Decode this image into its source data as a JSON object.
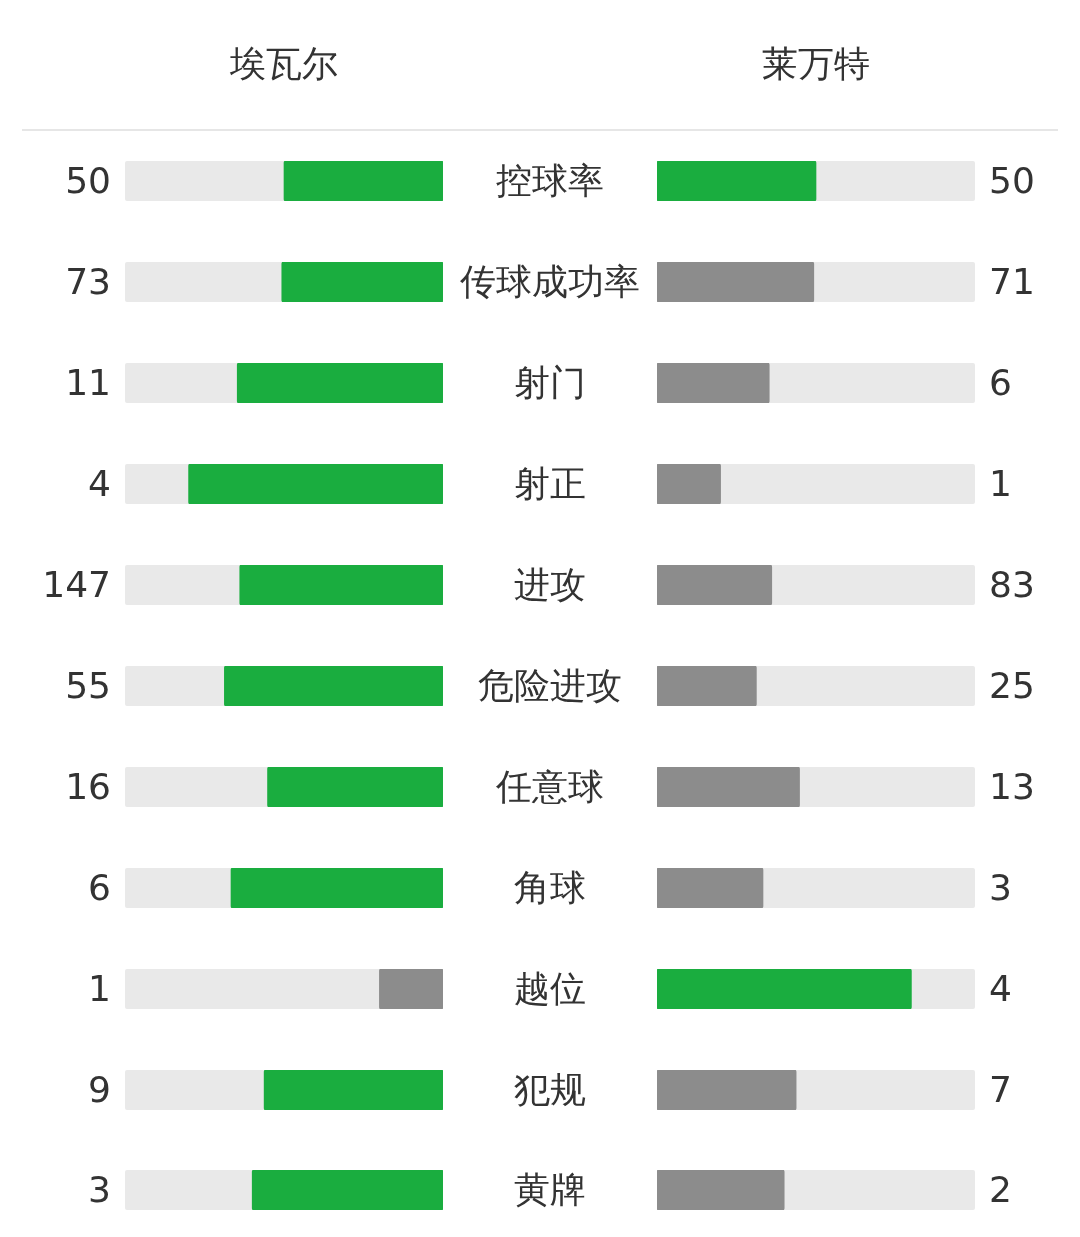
{
  "chart_data": {
    "type": "other",
    "data_labels": true,
    "categories": [
      "控球率",
      "传球成功率",
      "射门",
      "射正",
      "进攻",
      "危险进攻",
      "任意球",
      "角球",
      "越位",
      "犯规",
      "黄牌"
    ],
    "series": [
      {
        "name": "埃瓦尔",
        "values": [
          50,
          73,
          11,
          4,
          147,
          55,
          16,
          6,
          1,
          9,
          3
        ],
        "colors": [
          "#1aad3f",
          "#1aad3f",
          "#1aad3f",
          "#1aad3f",
          "#1aad3f",
          "#1aad3f",
          "#1aad3f",
          "#1aad3f",
          "#8c8c8c",
          "#1aad3f",
          "#1aad3f"
        ]
      },
      {
        "name": "莱万特",
        "values": [
          50,
          71,
          6,
          1,
          83,
          25,
          13,
          3,
          4,
          7,
          2
        ],
        "colors": [
          "#1aad3f",
          "#8c8c8c",
          "#8c8c8c",
          "#8c8c8c",
          "#8c8c8c",
          "#8c8c8c",
          "#8c8c8c",
          "#8c8c8c",
          "#1aad3f",
          "#8c8c8c",
          "#8c8c8c"
        ]
      }
    ]
  }
}
